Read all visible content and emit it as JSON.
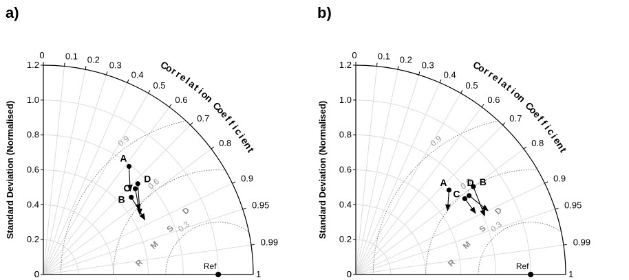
{
  "chart_data": [
    {
      "type": "scatter",
      "subtype": "taylor-diagram",
      "panel_label": "a)",
      "ylabel": "Standard Deviation (Normalised)",
      "angular_axis_label": "Correlation Coefficient",
      "rmsd_label": "R M S D",
      "std_ticks": [
        "0",
        "0.2",
        "0.4",
        "0.6",
        "0.8",
        "1.0",
        "1.2"
      ],
      "std_tick_values": [
        0,
        0.2,
        0.4,
        0.6,
        0.8,
        1.0,
        1.2
      ],
      "x_ticks": [
        "0",
        "1"
      ],
      "x_tick_values": [
        0,
        1
      ],
      "corr_ticks": [
        "0",
        "0.1",
        "0.2",
        "0.3",
        "0.4",
        "0.5",
        "0.6",
        "0.7",
        "0.8",
        "0.9",
        "0.95",
        "0.99",
        "1"
      ],
      "corr_tick_values": [
        0,
        0.1,
        0.2,
        0.3,
        0.4,
        0.5,
        0.6,
        0.7,
        0.8,
        0.9,
        0.95,
        0.99,
        1
      ],
      "rms_contours": [
        "0.3",
        "0.6",
        "0.9"
      ],
      "rms_contour_values": [
        0.3,
        0.6,
        0.9
      ],
      "std_max": 1.2,
      "reference": {
        "name": "Ref",
        "std": 1.0,
        "corr": 1.0
      },
      "points": [
        {
          "name": "A",
          "std": 0.79,
          "corr": 0.62,
          "arrow_to": {
            "std": 0.69,
            "corr": 0.72
          }
        },
        {
          "name": "B",
          "std": 0.67,
          "corr": 0.75,
          "arrow_to": {
            "std": 0.66,
            "corr": 0.88
          }
        },
        {
          "name": "C",
          "std": 0.72,
          "corr": 0.73,
          "arrow_to": {
            "std": 0.66,
            "corr": 0.83
          }
        },
        {
          "name": "D",
          "std": 0.75,
          "corr": 0.72,
          "arrow_to": {
            "std": 0.65,
            "corr": 0.85
          }
        }
      ]
    },
    {
      "type": "scatter",
      "subtype": "taylor-diagram",
      "panel_label": "b)",
      "ylabel": "Standard Deviation (Normalised)",
      "angular_axis_label": "Correlation Coefficient",
      "rmsd_label": "R M S D",
      "std_ticks": [
        "0",
        "0.2",
        "0.4",
        "0.6",
        "0.8",
        "1.0",
        "1.2"
      ],
      "std_tick_values": [
        0,
        0.2,
        0.4,
        0.6,
        0.8,
        1.0,
        1.2
      ],
      "x_ticks": [
        "0",
        "1"
      ],
      "x_tick_values": [
        0,
        1
      ],
      "corr_ticks": [
        "0",
        "0.1",
        "0.2",
        "0.3",
        "0.4",
        "0.5",
        "0.6",
        "0.7",
        "0.8",
        "0.9",
        "0.95",
        "0.99",
        "1"
      ],
      "corr_tick_values": [
        0,
        0.1,
        0.2,
        0.3,
        0.4,
        0.5,
        0.6,
        0.7,
        0.8,
        0.9,
        0.95,
        0.99,
        1
      ],
      "rms_contours": [
        "0.3",
        "0.6",
        "0.9"
      ],
      "rms_contour_values": [
        0.3,
        0.6,
        0.9
      ],
      "std_max": 1.2,
      "reference": {
        "name": "Ref",
        "std": 1.0,
        "corr": 1.0
      },
      "points": [
        {
          "name": "A",
          "std": 0.72,
          "corr": 0.74,
          "arrow_to": {
            "std": 0.64,
            "corr": 0.82
          }
        },
        {
          "name": "B",
          "std": 0.84,
          "corr": 0.8,
          "arrow_to": {
            "std": 0.81,
            "corr": 0.91
          }
        },
        {
          "name": "C",
          "std": 0.76,
          "corr": 0.82,
          "arrow_to": {
            "std": 0.77,
            "corr": 0.89
          }
        },
        {
          "name": "D",
          "std": 0.79,
          "corr": 0.82,
          "arrow_to": {
            "std": 0.84,
            "corr": 0.9
          }
        }
      ]
    }
  ]
}
